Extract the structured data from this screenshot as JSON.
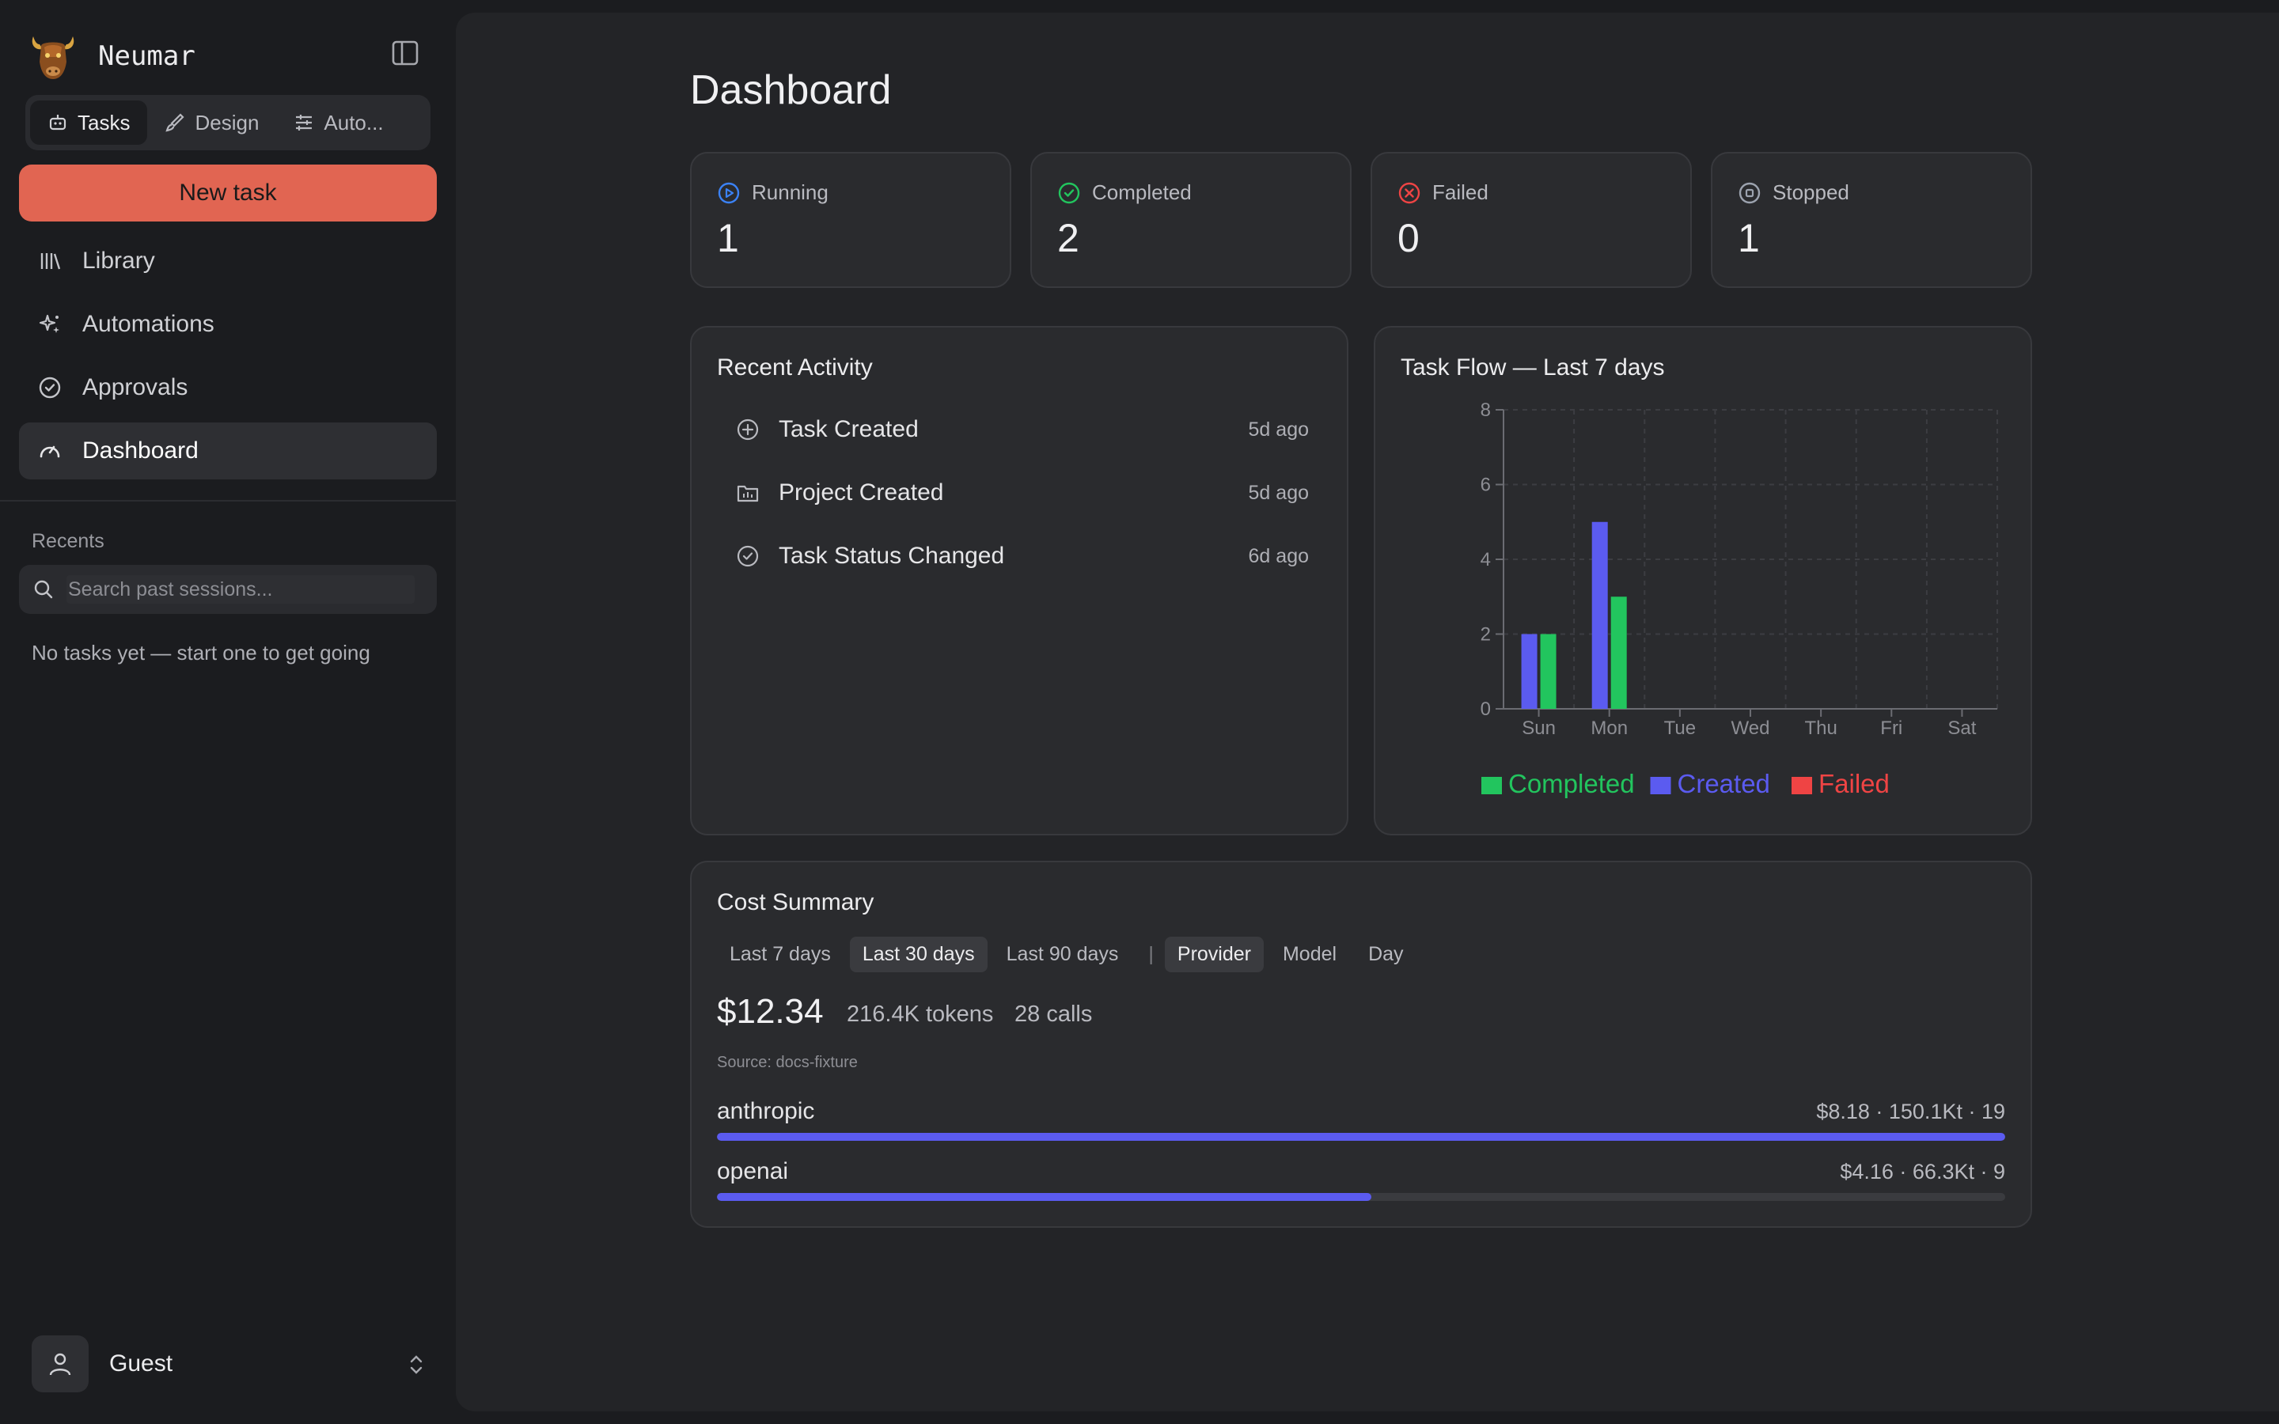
{
  "app": {
    "name": "Neumar"
  },
  "mode_tabs": [
    {
      "label": "Tasks",
      "icon": "robot-icon",
      "active": true
    },
    {
      "label": "Design",
      "icon": "brush-icon",
      "active": false
    },
    {
      "label": "Auto...",
      "icon": "sliders-icon",
      "active": false
    }
  ],
  "new_task_label": "New task",
  "nav": [
    {
      "label": "Library",
      "icon": "library-icon"
    },
    {
      "label": "Automations",
      "icon": "sparkle-icon"
    },
    {
      "label": "Approvals",
      "icon": "check-circle-icon"
    },
    {
      "label": "Dashboard",
      "icon": "gauge-icon",
      "active": true
    }
  ],
  "recents": {
    "label": "Recents",
    "search_placeholder": "Search past sessions...",
    "empty": "No tasks yet — start one to get going"
  },
  "user": {
    "name": "Guest"
  },
  "dashboard": {
    "title": "Dashboard",
    "stats": [
      {
        "label": "Running",
        "value": "1",
        "color": "#3b82f6"
      },
      {
        "label": "Completed",
        "value": "2",
        "color": "#22c55e"
      },
      {
        "label": "Failed",
        "value": "0",
        "color": "#ef4444"
      },
      {
        "label": "Stopped",
        "value": "1",
        "color": "#9ca3af"
      }
    ],
    "activity": {
      "title": "Recent Activity",
      "items": [
        {
          "label": "Task Created",
          "time": "5d ago",
          "icon": "plus-circle-icon"
        },
        {
          "label": "Project Created",
          "time": "5d ago",
          "icon": "folder-chart-icon"
        },
        {
          "label": "Task Status Changed",
          "time": "6d ago",
          "icon": "check-circle-icon"
        }
      ]
    },
    "cost": {
      "title": "Cost Summary",
      "ranges": [
        "Last 7 days",
        "Last 30 days",
        "Last 90 days"
      ],
      "active_range": "Last 30 days",
      "separator": "|",
      "groupings": [
        "Provider",
        "Model",
        "Day"
      ],
      "active_grouping": "Provider",
      "total": "$12.34",
      "tokens": "216.4K tokens",
      "calls": "28 calls",
      "source": "Source: docs-fixture",
      "providers": [
        {
          "name": "anthropic",
          "stats": "$8.18 · 150.1Kt · 19",
          "share": 1.0
        },
        {
          "name": "openai",
          "stats": "$4.16 · 66.3Kt · 9",
          "share": 0.508
        }
      ]
    }
  },
  "chart_data": {
    "type": "bar",
    "title": "Task Flow — Last 7 days",
    "categories": [
      "Sun",
      "Mon",
      "Tue",
      "Wed",
      "Thu",
      "Fri",
      "Sat"
    ],
    "series": [
      {
        "name": "Created",
        "values": [
          2,
          5,
          0,
          0,
          0,
          0,
          0
        ],
        "color": "#5b5bf0"
      },
      {
        "name": "Completed",
        "values": [
          2,
          3,
          0,
          0,
          0,
          0,
          0
        ],
        "color": "#22c55e"
      },
      {
        "name": "Failed",
        "values": [
          0,
          0,
          0,
          0,
          0,
          0,
          0
        ],
        "color": "#ef4444"
      }
    ],
    "legend": [
      "Completed",
      "Created",
      "Failed"
    ],
    "ylim": [
      0,
      8
    ],
    "yticks": [
      0,
      2,
      4,
      6,
      8
    ],
    "grid": true,
    "legend_position": "bottom"
  }
}
